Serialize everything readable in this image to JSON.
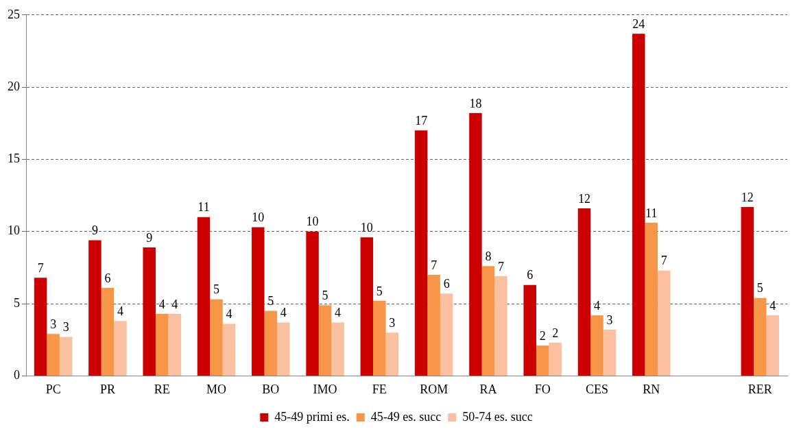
{
  "chart_data": {
    "type": "bar",
    "categories": [
      "PC",
      "PR",
      "RE",
      "MO",
      "BO",
      "IMO",
      "FE",
      "ROM",
      "RA",
      "FO",
      "CES",
      "RN",
      null,
      "RER"
    ],
    "series": [
      {
        "name": "45-49 primi es.",
        "color": "#cc0000",
        "values": [
          6.8,
          9.4,
          8.9,
          11.0,
          10.3,
          10.0,
          9.6,
          17.0,
          18.2,
          6.3,
          11.6,
          23.7,
          null,
          11.7
        ],
        "value_labels": [
          "7",
          "9",
          "9",
          "11",
          "10",
          "10",
          "10",
          "17",
          "18",
          "6",
          "12",
          "24",
          null,
          "12"
        ]
      },
      {
        "name": "45-49 es. succ",
        "color": "#f79646",
        "values": [
          2.9,
          6.1,
          4.3,
          5.3,
          4.5,
          4.9,
          5.2,
          7.0,
          7.6,
          2.1,
          4.2,
          10.6,
          null,
          5.4
        ],
        "value_labels": [
          "3",
          "6",
          "4",
          "5",
          "5",
          "5",
          "5",
          "7",
          "8",
          "2",
          "4",
          "11",
          null,
          "5"
        ]
      },
      {
        "name": "50-74 es. succ",
        "color": "#fac09f",
        "values": [
          2.7,
          3.8,
          4.3,
          3.6,
          3.7,
          3.7,
          3.0,
          5.7,
          6.9,
          2.3,
          3.2,
          7.3,
          null,
          4.2
        ],
        "value_labels": [
          "3",
          "4",
          "4",
          "4",
          "4",
          "4",
          "3",
          "6",
          "7",
          "2",
          "3",
          "7",
          null,
          "4"
        ]
      }
    ],
    "ylim": [
      0,
      25
    ],
    "yticks": [
      0,
      5,
      10,
      15,
      20,
      25
    ],
    "grid": "y",
    "legend": "bottom"
  }
}
